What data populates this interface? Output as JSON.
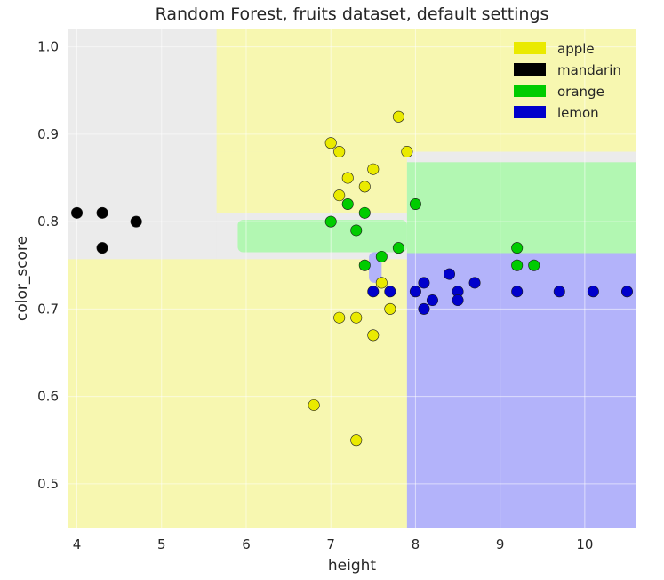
{
  "chart_data": {
    "type": "scatter",
    "title": "Random Forest, fruits dataset, default settings",
    "xlabel": "height",
    "ylabel": "color_score",
    "xlim": [
      3.9,
      10.6
    ],
    "ylim": [
      0.45,
      1.02
    ],
    "x_ticks": [
      4,
      5,
      6,
      7,
      8,
      9,
      10
    ],
    "y_ticks": [
      0.5,
      0.6,
      0.7,
      0.8,
      0.9,
      1.0
    ],
    "grid": true,
    "legend_position": "top-right",
    "colors": {
      "apple": "#eaea00",
      "mandarin": "#000000",
      "orange": "#00cc00",
      "lemon": "#0000cc",
      "region_apple": "#f7f7b0",
      "region_orange": "#b2f7b2",
      "region_lemon": "#b3b3fa",
      "region_mandarin": "#ebebeb"
    },
    "legend": [
      {
        "label": "apple",
        "color": "#eaea00"
      },
      {
        "label": "mandarin",
        "color": "#000000"
      },
      {
        "label": "orange",
        "color": "#00cc00"
      },
      {
        "label": "lemon",
        "color": "#0000cc"
      }
    ],
    "decision_regions": [
      {
        "class": "mandarin",
        "x": [
          3.9,
          5.65
        ],
        "y": [
          0.757,
          1.02
        ]
      },
      {
        "class": "apple",
        "x": [
          5.65,
          10.6
        ],
        "y": [
          0.88,
          1.02
        ]
      },
      {
        "class": "apple",
        "x": [
          5.65,
          7.9
        ],
        "y": [
          0.81,
          0.88
        ]
      },
      {
        "class": "mandarin",
        "x": [
          5.65,
          7.9
        ],
        "y": [
          0.757,
          0.81
        ]
      },
      {
        "class": "orange",
        "x": [
          5.9,
          7.9
        ],
        "y": [
          0.765,
          0.802
        ]
      },
      {
        "class": "mandarin",
        "x": [
          7.9,
          10.6
        ],
        "y": [
          0.87,
          0.88
        ]
      },
      {
        "class": "orange",
        "x": [
          7.9,
          10.6
        ],
        "y": [
          0.764,
          0.868
        ]
      },
      {
        "class": "apple",
        "x": [
          3.9,
          7.9
        ],
        "y": [
          0.45,
          0.757
        ]
      },
      {
        "class": "lemon",
        "x": [
          7.9,
          10.6
        ],
        "y": [
          0.45,
          0.764
        ]
      },
      {
        "class": "lemon",
        "x": [
          7.45,
          7.6
        ],
        "y": [
          0.73,
          0.765
        ]
      }
    ],
    "series": [
      {
        "name": "apple",
        "points": [
          [
            6.8,
            0.59
          ],
          [
            7.0,
            0.89
          ],
          [
            7.1,
            0.88
          ],
          [
            7.1,
            0.83
          ],
          [
            7.1,
            0.69
          ],
          [
            7.2,
            0.85
          ],
          [
            7.3,
            0.69
          ],
          [
            7.3,
            0.55
          ],
          [
            7.4,
            0.84
          ],
          [
            7.5,
            0.86
          ],
          [
            7.5,
            0.67
          ],
          [
            7.6,
            0.73
          ],
          [
            7.7,
            0.7
          ],
          [
            7.8,
            0.92
          ],
          [
            7.9,
            0.88
          ]
        ]
      },
      {
        "name": "mandarin",
        "points": [
          [
            4.0,
            0.81
          ],
          [
            4.3,
            0.81
          ],
          [
            4.3,
            0.77
          ],
          [
            4.7,
            0.8
          ]
        ]
      },
      {
        "name": "orange",
        "points": [
          [
            7.0,
            0.8
          ],
          [
            7.2,
            0.82
          ],
          [
            7.3,
            0.79
          ],
          [
            7.4,
            0.81
          ],
          [
            7.4,
            0.75
          ],
          [
            7.6,
            0.76
          ],
          [
            7.8,
            0.77
          ],
          [
            8.0,
            0.82
          ],
          [
            9.2,
            0.77
          ],
          [
            9.2,
            0.75
          ],
          [
            9.4,
            0.75
          ]
        ]
      },
      {
        "name": "lemon",
        "points": [
          [
            7.5,
            0.72
          ],
          [
            7.7,
            0.72
          ],
          [
            8.0,
            0.72
          ],
          [
            8.1,
            0.73
          ],
          [
            8.1,
            0.7
          ],
          [
            8.2,
            0.71
          ],
          [
            8.4,
            0.74
          ],
          [
            8.5,
            0.72
          ],
          [
            8.5,
            0.71
          ],
          [
            8.7,
            0.73
          ],
          [
            9.2,
            0.72
          ],
          [
            9.7,
            0.72
          ],
          [
            10.1,
            0.72
          ],
          [
            10.5,
            0.72
          ]
        ]
      }
    ]
  }
}
